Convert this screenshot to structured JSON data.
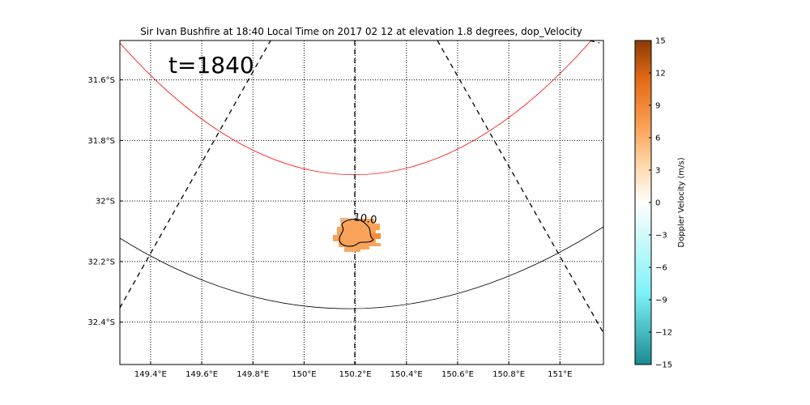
{
  "chart_data": {
    "type": "heatmap",
    "title": "Sir Ivan Bushfire at 18:40 Local Time on 2017 02 12 at elevation 1.8 degrees, dop_Velocity",
    "annotation": "t=1840",
    "contour_label": "10.0",
    "x_ticks": [
      {
        "value": 149.4,
        "label": "149.4°E"
      },
      {
        "value": 149.6,
        "label": "149.6°E"
      },
      {
        "value": 149.8,
        "label": "149.8°E"
      },
      {
        "value": 150.0,
        "label": "150°E"
      },
      {
        "value": 150.2,
        "label": "150.2°E"
      },
      {
        "value": 150.4,
        "label": "150.4°E"
      },
      {
        "value": 150.6,
        "label": "150.6°E"
      },
      {
        "value": 150.8,
        "label": "150.8°E"
      },
      {
        "value": 151.0,
        "label": "151°E"
      }
    ],
    "y_ticks": [
      {
        "value": -31.6,
        "label": "31.6°S"
      },
      {
        "value": -31.8,
        "label": "31.8°S"
      },
      {
        "value": -32.0,
        "label": "32°S"
      },
      {
        "value": -32.2,
        "label": "32.2°S"
      },
      {
        "value": -32.4,
        "label": "32.4°S"
      }
    ],
    "xlim": [
      149.28,
      151.17
    ],
    "ylim": [
      -32.54,
      -31.47
    ],
    "grid": true,
    "colorbar": {
      "label": "Doppler Velocity (m/s)",
      "min": -15,
      "max": 15,
      "ticks": [
        15,
        12,
        9,
        6,
        3,
        0,
        -3,
        -6,
        -9,
        -12,
        -15
      ],
      "tick_labels": [
        "15",
        "12",
        "9",
        "6",
        "3",
        "0",
        "−3",
        "−6",
        "−9",
        "−12",
        "−15"
      ],
      "colors": [
        "#1a8a8f",
        "#7ff2f7",
        "#fefefc",
        "#fdd6a6",
        "#f89a4c",
        "#e36a16",
        "#8a3c04"
      ]
    },
    "overlays": {
      "range_ring_red_color": "#ff0000",
      "range_ring_black_color": "#000000",
      "radial_lines": "dashed"
    },
    "echo": {
      "center_lon": 150.2,
      "center_lat": -32.1,
      "value_ms": 7,
      "color": "#f9a35a"
    }
  }
}
